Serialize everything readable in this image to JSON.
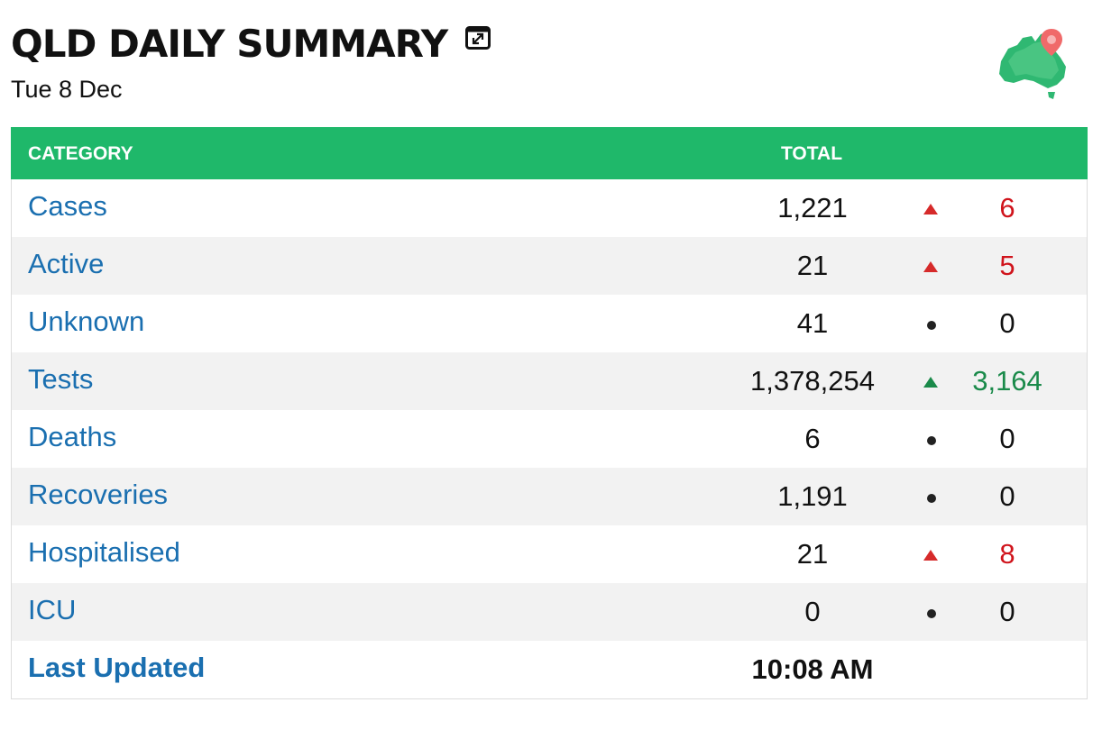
{
  "header": {
    "title": "QLD DAILY SUMMARY",
    "date": "Tue 8 Dec",
    "expand_icon": "expand-window-icon",
    "map_icon": "australia-map-pin-icon"
  },
  "colors": {
    "header_bg": "#1fb86a",
    "link": "#1a6fb0",
    "increase": "#d0141c",
    "positive_increase": "#1a8a4a"
  },
  "table": {
    "columns": [
      "CATEGORY",
      "TOTAL"
    ],
    "rows": [
      {
        "category": "Cases",
        "total": "1,221",
        "indicator": "up-red",
        "change": "6"
      },
      {
        "category": "Active",
        "total": "21",
        "indicator": "up-red",
        "change": "5"
      },
      {
        "category": "Unknown",
        "total": "41",
        "indicator": "dot",
        "change": "0"
      },
      {
        "category": "Tests",
        "total": "1,378,254",
        "indicator": "up-green",
        "change": "3,164"
      },
      {
        "category": "Deaths",
        "total": "6",
        "indicator": "dot",
        "change": "0"
      },
      {
        "category": "Recoveries",
        "total": "1,191",
        "indicator": "dot",
        "change": "0"
      },
      {
        "category": "Hospitalised",
        "total": "21",
        "indicator": "up-red",
        "change": "8"
      },
      {
        "category": "ICU",
        "total": "0",
        "indicator": "dot",
        "change": "0"
      }
    ],
    "footer": {
      "label": "Last Updated",
      "value": "10:08 AM"
    }
  }
}
